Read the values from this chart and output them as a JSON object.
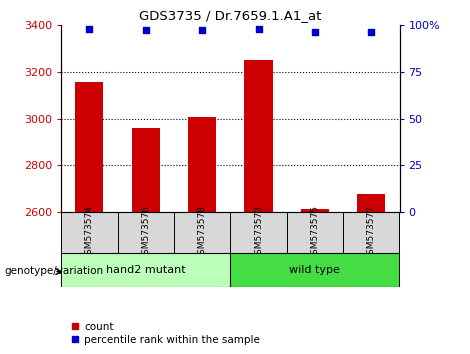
{
  "title": "GDS3735 / Dr.7659.1.A1_at",
  "samples": [
    "GSM573574",
    "GSM573576",
    "GSM573578",
    "GSM573573",
    "GSM573575",
    "GSM573577"
  ],
  "counts": [
    3155,
    2960,
    3005,
    3250,
    2615,
    2680
  ],
  "percentile_ranks": [
    98,
    97,
    97,
    98,
    96,
    96
  ],
  "ylim_left": [
    2600,
    3400
  ],
  "ylim_right": [
    0,
    100
  ],
  "yticks_left": [
    2600,
    2800,
    3000,
    3200,
    3400
  ],
  "yticks_right": [
    0,
    25,
    50,
    75,
    100
  ],
  "yticklabels_right": [
    "0",
    "25",
    "50",
    "75",
    "100%"
  ],
  "bar_color": "#cc0000",
  "dot_color": "#0000cc",
  "groups": [
    {
      "label": "hand2 mutant",
      "indices": [
        0,
        1,
        2
      ],
      "color": "#bbffbb"
    },
    {
      "label": "wild type",
      "indices": [
        3,
        4,
        5
      ],
      "color": "#44dd44"
    }
  ],
  "group_label": "genotype/variation",
  "legend_count_label": "count",
  "legend_pct_label": "percentile rank within the sample",
  "left_tick_color": "#cc0000",
  "right_tick_color": "#0000cc",
  "bar_bottom": 2600
}
